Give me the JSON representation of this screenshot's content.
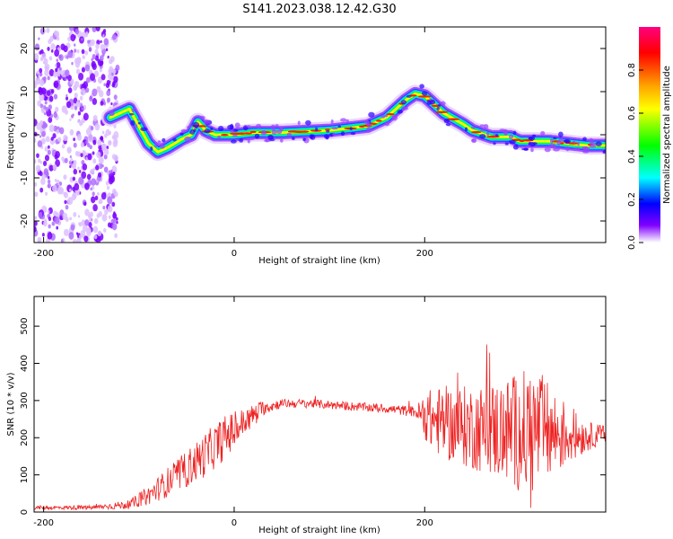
{
  "title": "S141.2023.038.12.42.G30",
  "chart_data": [
    {
      "type": "heatmap",
      "xlabel": "Height of straight line (km)",
      "ylabel": "Frequency (Hz)",
      "xlim": [
        -210,
        390
      ],
      "ylim": [
        -25,
        25
      ],
      "x_ticks": [
        "-200",
        "0",
        "200"
      ],
      "y_ticks": [
        "-20",
        "-10",
        "0",
        "10",
        "20"
      ],
      "colorbar": {
        "label": "Normalized spectral amplitude",
        "ticks": [
          "0.0",
          "0.2",
          "0.4",
          "0.6",
          "0.8"
        ],
        "range": [
          0,
          1
        ],
        "colormap": [
          "#ff0080",
          "#ff0000",
          "#ffaa00",
          "#ffff00",
          "#00ff00",
          "#00ffff",
          "#0000ff",
          "#8000ff",
          "#ffffff"
        ]
      },
      "ridge": {
        "x": [
          -130,
          -110,
          -100,
          -90,
          -80,
          -70,
          -55,
          -45,
          -38,
          -30,
          -20,
          0,
          20,
          50,
          80,
          100,
          120,
          140,
          160,
          170,
          180,
          190,
          200,
          210,
          220,
          240,
          250,
          270,
          290,
          300,
          330,
          350,
          370,
          390
        ],
        "y": [
          4,
          6,
          2,
          -2,
          -4,
          -3,
          -1,
          0,
          3,
          1,
          0,
          0,
          0.5,
          0.5,
          0.8,
          1,
          1.5,
          2,
          4,
          6,
          8,
          9.5,
          9,
          7,
          5,
          2.5,
          1,
          -0.5,
          -0.5,
          -1.5,
          -1.5,
          -2,
          -2.5,
          -2.5
        ]
      }
    },
    {
      "type": "line",
      "xlabel": "Height of straight line (km)",
      "ylabel": "SNR (10 * v/v)",
      "xlim": [
        -210,
        390
      ],
      "ylim": [
        0,
        580
      ],
      "x_ticks": [
        "-200",
        "0",
        "200"
      ],
      "y_ticks": [
        "0",
        "100",
        "200",
        "300",
        "400",
        "500"
      ],
      "color": "#ee2222",
      "envelope": {
        "x": [
          -210,
          -150,
          -110,
          -90,
          -70,
          -50,
          -30,
          -10,
          10,
          30,
          50,
          80,
          120,
          160,
          190,
          205,
          220,
          240,
          260,
          280,
          300,
          310,
          320,
          340,
          360,
          375,
          390
        ],
        "mean": [
          12,
          12,
          20,
          45,
          80,
          115,
          155,
          200,
          240,
          280,
          292,
          292,
          285,
          278,
          270,
          250,
          240,
          230,
          225,
          220,
          215,
          215,
          220,
          210,
          205,
          205,
          210
        ],
        "spread": [
          5,
          6,
          12,
          25,
          40,
          50,
          60,
          60,
          40,
          20,
          12,
          12,
          12,
          12,
          15,
          80,
          100,
          110,
          120,
          140,
          160,
          180,
          160,
          110,
          60,
          35,
          25
        ]
      }
    }
  ]
}
